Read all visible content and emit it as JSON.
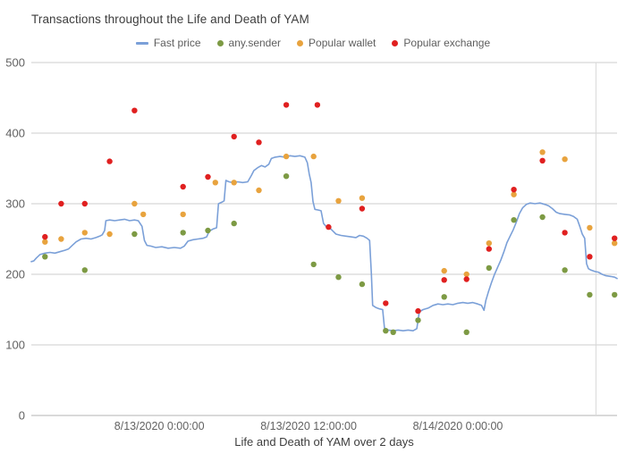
{
  "chart_data": {
    "type": "line",
    "title": "Transactions throughout the Life and Death of YAM",
    "xlabel": "Life and Death of YAM over 2 days",
    "ylabel": "",
    "x_unit": "hours relative to 8/13/2020 0:00:00",
    "x_range": [
      -10.3,
      36.8
    ],
    "ylim": [
      0,
      500
    ],
    "y_ticks": [
      0,
      100,
      200,
      300,
      400,
      500
    ],
    "x_ticks": [
      {
        "value": 0,
        "label": "8/13/2020 0:00:00"
      },
      {
        "value": 12,
        "label": "8/13/2020 12:00:00"
      },
      {
        "value": 24,
        "label": "8/14/2020 0:00:00"
      }
    ],
    "right_gridline_x": 35.1,
    "grid": "horizontal",
    "legend_position": "top",
    "colors": {
      "fast_price": "#7ba0d8",
      "any_sender": "#7d9a44",
      "popular_wallet": "#e8a33e",
      "popular_exchange": "#e02020",
      "gridline": "#cccccc",
      "baseline": "#b3b3b3"
    },
    "series": [
      {
        "name": "Fast price",
        "type": "line",
        "color": "#7ba0d8",
        "points": [
          [
            -10.3,
            218
          ],
          [
            -10.1,
            219
          ],
          [
            -9.9,
            223
          ],
          [
            -9.6,
            228
          ],
          [
            -9.2,
            230
          ],
          [
            -8.8,
            231
          ],
          [
            -8.4,
            230
          ],
          [
            -8,
            232
          ],
          [
            -7.6,
            234
          ],
          [
            -7.3,
            236
          ],
          [
            -7,
            241
          ],
          [
            -6.7,
            246
          ],
          [
            -6.3,
            250
          ],
          [
            -5.9,
            251
          ],
          [
            -5.5,
            250
          ],
          [
            -5.1,
            252
          ],
          [
            -4.8,
            254
          ],
          [
            -4.6,
            256
          ],
          [
            -4.4,
            262
          ],
          [
            -4.3,
            276
          ],
          [
            -4,
            277
          ],
          [
            -3.6,
            276
          ],
          [
            -3.2,
            277
          ],
          [
            -2.8,
            278
          ],
          [
            -2.4,
            276
          ],
          [
            -2,
            277
          ],
          [
            -1.7,
            276
          ],
          [
            -1.4,
            268
          ],
          [
            -1.2,
            248
          ],
          [
            -1,
            241
          ],
          [
            -0.7,
            240
          ],
          [
            -0.3,
            238
          ],
          [
            0.2,
            239
          ],
          [
            0.7,
            237
          ],
          [
            1.2,
            238
          ],
          [
            1.7,
            237
          ],
          [
            2,
            240
          ],
          [
            2.3,
            247
          ],
          [
            2.7,
            249
          ],
          [
            3.1,
            250
          ],
          [
            3.5,
            251
          ],
          [
            3.8,
            253
          ],
          [
            4,
            261
          ],
          [
            4.3,
            264
          ],
          [
            4.6,
            266
          ],
          [
            4.75,
            300
          ],
          [
            5,
            302
          ],
          [
            5.2,
            304
          ],
          [
            5.35,
            333
          ],
          [
            5.6,
            331
          ],
          [
            5.9,
            330
          ],
          [
            6.3,
            331
          ],
          [
            6.7,
            330
          ],
          [
            7.1,
            331
          ],
          [
            7.4,
            340
          ],
          [
            7.6,
            347
          ],
          [
            7.9,
            351
          ],
          [
            8.2,
            354
          ],
          [
            8.5,
            352
          ],
          [
            8.8,
            356
          ],
          [
            9,
            364
          ],
          [
            9.3,
            366
          ],
          [
            9.7,
            367
          ],
          [
            10.1,
            366
          ],
          [
            10.5,
            368
          ],
          [
            10.9,
            367
          ],
          [
            11.3,
            368
          ],
          [
            11.7,
            366
          ],
          [
            11.9,
            358
          ],
          [
            12.05,
            342
          ],
          [
            12.2,
            330
          ],
          [
            12.35,
            303
          ],
          [
            12.5,
            292
          ],
          [
            12.8,
            291
          ],
          [
            13,
            290
          ],
          [
            13.2,
            272
          ],
          [
            13.5,
            266
          ],
          [
            13.8,
            264
          ],
          [
            14.2,
            257
          ],
          [
            14.6,
            255
          ],
          [
            15,
            254
          ],
          [
            15.4,
            253
          ],
          [
            15.8,
            252
          ],
          [
            16.1,
            255
          ],
          [
            16.4,
            254
          ],
          [
            16.7,
            251
          ],
          [
            16.9,
            248
          ],
          [
            17.05,
            200
          ],
          [
            17.15,
            156
          ],
          [
            17.4,
            153
          ],
          [
            17.7,
            151
          ],
          [
            17.95,
            150
          ],
          [
            18.1,
            124
          ],
          [
            18.4,
            121
          ],
          [
            18.8,
            120
          ],
          [
            19.2,
            121
          ],
          [
            19.6,
            120
          ],
          [
            20,
            121
          ],
          [
            20.4,
            120
          ],
          [
            20.7,
            123
          ],
          [
            20.9,
            147
          ],
          [
            21.2,
            150
          ],
          [
            21.6,
            152
          ],
          [
            22,
            156
          ],
          [
            22.4,
            158
          ],
          [
            22.8,
            157
          ],
          [
            23.2,
            158
          ],
          [
            23.6,
            157
          ],
          [
            24,
            159
          ],
          [
            24.4,
            160
          ],
          [
            24.8,
            159
          ],
          [
            25.2,
            160
          ],
          [
            25.6,
            158
          ],
          [
            25.9,
            156
          ],
          [
            26.1,
            149
          ],
          [
            26.25,
            163
          ],
          [
            26.45,
            175
          ],
          [
            26.7,
            188
          ],
          [
            26.95,
            200
          ],
          [
            27.2,
            210
          ],
          [
            27.45,
            220
          ],
          [
            27.7,
            232
          ],
          [
            27.95,
            245
          ],
          [
            28.2,
            254
          ],
          [
            28.45,
            263
          ],
          [
            28.7,
            274
          ],
          [
            28.95,
            286
          ],
          [
            29.2,
            294
          ],
          [
            29.5,
            299
          ],
          [
            29.8,
            301
          ],
          [
            30.2,
            300
          ],
          [
            30.6,
            301
          ],
          [
            31,
            299
          ],
          [
            31.3,
            297
          ],
          [
            31.6,
            293
          ],
          [
            31.9,
            288
          ],
          [
            32.2,
            286
          ],
          [
            32.6,
            285
          ],
          [
            33,
            284
          ],
          [
            33.3,
            282
          ],
          [
            33.6,
            278
          ],
          [
            33.8,
            268
          ],
          [
            34,
            257
          ],
          [
            34.2,
            251
          ],
          [
            34.35,
            215
          ],
          [
            34.5,
            208
          ],
          [
            34.7,
            206
          ],
          [
            35,
            204
          ],
          [
            35.3,
            203
          ],
          [
            35.6,
            200
          ],
          [
            35.9,
            198
          ],
          [
            36.3,
            197
          ],
          [
            36.6,
            196
          ],
          [
            36.8,
            194
          ]
        ]
      },
      {
        "name": "any.sender",
        "type": "scatter",
        "color": "#7d9a44",
        "points": [
          [
            -9.2,
            225
          ],
          [
            -6,
            206
          ],
          [
            -2,
            257
          ],
          [
            1.9,
            259
          ],
          [
            3.9,
            262
          ],
          [
            6,
            272
          ],
          [
            10.2,
            339
          ],
          [
            12.4,
            214
          ],
          [
            14.4,
            196
          ],
          [
            16.3,
            186
          ],
          [
            18.2,
            120
          ],
          [
            18.8,
            118
          ],
          [
            20.8,
            135
          ],
          [
            22.9,
            168
          ],
          [
            24.7,
            118
          ],
          [
            26.5,
            209
          ],
          [
            28.5,
            277
          ],
          [
            30.8,
            281
          ],
          [
            32.6,
            206
          ],
          [
            34.6,
            171
          ],
          [
            36.6,
            171
          ]
        ]
      },
      {
        "name": "Popular wallet",
        "type": "scatter",
        "color": "#e8a33e",
        "points": [
          [
            -9.2,
            246
          ],
          [
            -7.9,
            250
          ],
          [
            -6,
            259
          ],
          [
            -4,
            257
          ],
          [
            -2,
            300
          ],
          [
            -1.3,
            285
          ],
          [
            1.9,
            285
          ],
          [
            4.5,
            330
          ],
          [
            6,
            330
          ],
          [
            8,
            319
          ],
          [
            10.2,
            367
          ],
          [
            12.4,
            367
          ],
          [
            14.4,
            304
          ],
          [
            16.3,
            308
          ],
          [
            22.9,
            205
          ],
          [
            24.7,
            200
          ],
          [
            26.5,
            244
          ],
          [
            28.5,
            313
          ],
          [
            30.8,
            373
          ],
          [
            32.6,
            363
          ],
          [
            34.6,
            266
          ],
          [
            36.6,
            244
          ]
        ]
      },
      {
        "name": "Popular exchange",
        "type": "scatter",
        "color": "#e02020",
        "points": [
          [
            -9.2,
            253
          ],
          [
            -7.9,
            300
          ],
          [
            -6,
            300
          ],
          [
            -4,
            360
          ],
          [
            -2,
            432
          ],
          [
            1.9,
            324
          ],
          [
            3.9,
            338
          ],
          [
            6,
            395
          ],
          [
            8,
            387
          ],
          [
            10.2,
            440
          ],
          [
            12.7,
            440
          ],
          [
            13.6,
            267
          ],
          [
            16.3,
            293
          ],
          [
            18.2,
            159
          ],
          [
            20.8,
            148
          ],
          [
            22.9,
            192
          ],
          [
            24.7,
            193
          ],
          [
            26.5,
            236
          ],
          [
            28.5,
            320
          ],
          [
            30.8,
            361
          ],
          [
            32.6,
            259
          ],
          [
            34.6,
            225
          ],
          [
            36.6,
            251
          ]
        ]
      }
    ]
  }
}
